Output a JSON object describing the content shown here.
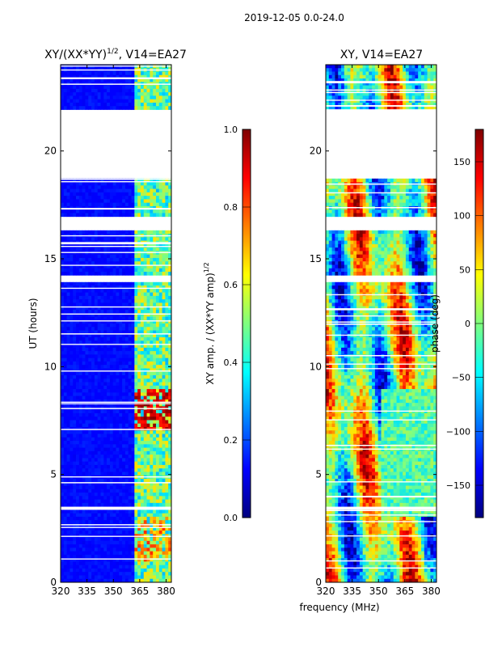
{
  "figure": {
    "suptitle": "2019-12-05 0.0-24.0",
    "shared_xlabel": "frequency (MHz)"
  },
  "colors": {
    "jet": [
      "#00007f",
      "#0000ff",
      "#007fff",
      "#00ffff",
      "#7fff7f",
      "#ffff00",
      "#ff7f00",
      "#ff0000",
      "#7f0000"
    ],
    "background": "#ffffff",
    "frame": "#000000"
  },
  "chart_data": [
    {
      "type": "heatmap",
      "panel": "left",
      "title_main": "XY/(XX*YY)",
      "title_sup": "1/2",
      "title_tail": ", V14=EA27",
      "xlabel": "",
      "ylabel": "UT (hours)",
      "xlim": [
        320,
        383
      ],
      "ylim": [
        0,
        24
      ],
      "xticks": [
        320,
        335,
        350,
        365,
        380
      ],
      "yticks": [
        0,
        5,
        10,
        15,
        20
      ],
      "data_gaps_hours": [
        [
          18.7,
          21.9
        ],
        [
          16.3,
          16.9
        ],
        [
          13.9,
          14.2
        ],
        [
          3.4,
          3.6
        ]
      ],
      "colorbar": {
        "label_main": "XY amp. / (XX*YY amp)",
        "label_sup": "1/2",
        "range": [
          0.0,
          1.0
        ],
        "ticks": [
          "0.0",
          "0.2",
          "0.4",
          "0.6",
          "0.8",
          "1.0"
        ],
        "tick_values": [
          0.0,
          0.2,
          0.4,
          0.6,
          0.8,
          1.0
        ]
      }
    },
    {
      "type": "heatmap",
      "panel": "right",
      "title_main": "XY, V14=EA27",
      "title_sup": "",
      "title_tail": "",
      "xlabel": "frequency (MHz)",
      "ylabel": "",
      "xlim": [
        320,
        383
      ],
      "ylim": [
        0,
        24
      ],
      "xticks": [
        320,
        335,
        350,
        365,
        380
      ],
      "yticks": [
        0,
        5,
        10,
        15,
        20
      ],
      "data_gaps_hours": [
        [
          18.7,
          21.9
        ],
        [
          16.3,
          16.9
        ],
        [
          13.9,
          14.2
        ],
        [
          3.4,
          3.6
        ]
      ],
      "colorbar": {
        "label_main": "phase (deg)",
        "label_sup": "",
        "range": [
          -180,
          180
        ],
        "ticks": [
          "−150",
          "−100",
          "−50",
          "0",
          "50",
          "100",
          "150"
        ],
        "tick_values": [
          -150,
          -100,
          -50,
          0,
          50,
          100,
          150
        ]
      }
    }
  ]
}
